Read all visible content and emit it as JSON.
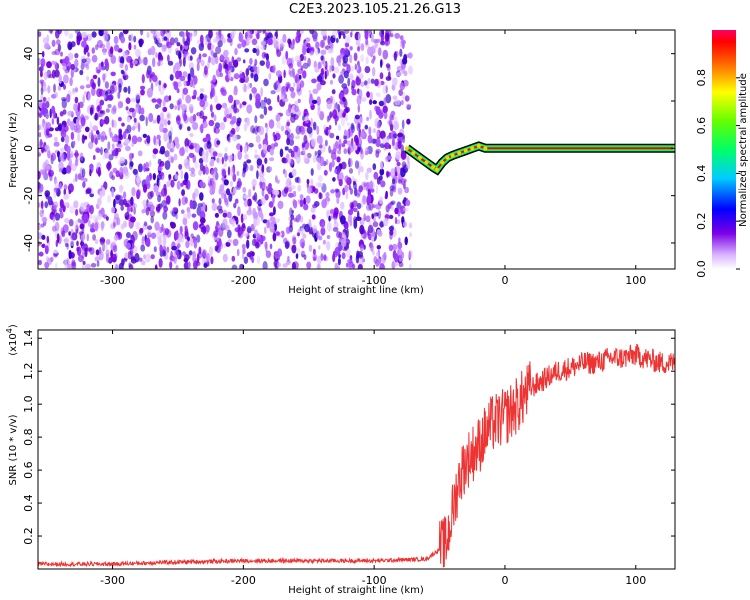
{
  "title": "C2E3.2023.105.21.26.G13",
  "chart_data": [
    {
      "type": "heatmap",
      "title": "C2E3.2023.105.21.26.G13",
      "xlabel": "Height of straight line (km)",
      "ylabel": "Frequency (Hz)",
      "xlim": [
        -357,
        130
      ],
      "ylim": [
        -51,
        50
      ],
      "xticks": [
        -300,
        -200,
        -100,
        0,
        100
      ],
      "yticks": [
        -40,
        -20,
        0,
        20,
        40
      ],
      "noise_region_x": [
        -357,
        -72
      ],
      "signal_trace": [
        {
          "x": -75,
          "y": 0
        },
        {
          "x": -70,
          "y": -2
        },
        {
          "x": -65,
          "y": -4
        },
        {
          "x": -60,
          "y": -6
        },
        {
          "x": -55,
          "y": -8
        },
        {
          "x": -52,
          "y": -9
        },
        {
          "x": -48,
          "y": -6
        },
        {
          "x": -44,
          "y": -4
        },
        {
          "x": -40,
          "y": -3
        },
        {
          "x": -35,
          "y": -2
        },
        {
          "x": -30,
          "y": -1
        },
        {
          "x": -25,
          "y": 0
        },
        {
          "x": -20,
          "y": 1
        },
        {
          "x": -15,
          "y": 0
        },
        {
          "x": 130,
          "y": 0
        }
      ],
      "colorbar": {
        "label": "Normalized spectral amplitude",
        "range": [
          0,
          1
        ],
        "ticks": [
          "0.0",
          "0.2",
          "0.4",
          "0.6",
          "0.8"
        ],
        "tick_values": [
          0,
          0.2,
          0.4,
          0.6,
          0.8
        ]
      },
      "grid": false
    },
    {
      "type": "line",
      "xlabel": "Height of straight line (km)",
      "ylabel": "SNR (10 * v/v)",
      "y_multiplier": "(x10",
      "y_multiplier_exp": "4",
      "y_multiplier_close": ")",
      "xlim": [
        -357,
        130
      ],
      "ylim": [
        0,
        1.45
      ],
      "xticks": [
        -300,
        -200,
        -100,
        0,
        100
      ],
      "yticks": [
        "0.2",
        "0.4",
        "0.6",
        "0.8",
        "1.0",
        "1.2",
        "1.4"
      ],
      "ytick_values": [
        0.2,
        0.4,
        0.6,
        0.8,
        1.0,
        1.2,
        1.4
      ],
      "series": [
        {
          "color": "#ee3333",
          "x": [
            -357,
            -300,
            -260,
            -200,
            -150,
            -100,
            -60,
            -45,
            -40,
            -35,
            -30,
            -25,
            -20,
            -15,
            -10,
            -5,
            0,
            10,
            20,
            30,
            40,
            50,
            60,
            70,
            80,
            90,
            100,
            110,
            120,
            130
          ],
          "y": [
            0.03,
            0.03,
            0.04,
            0.05,
            0.05,
            0.05,
            0.06,
            0.15,
            0.35,
            0.55,
            0.65,
            0.7,
            0.75,
            0.82,
            0.88,
            0.9,
            0.92,
            1.0,
            1.1,
            1.15,
            1.2,
            1.22,
            1.25,
            1.25,
            1.28,
            1.28,
            1.3,
            1.27,
            1.25,
            1.25
          ]
        }
      ],
      "grid": false
    }
  ]
}
